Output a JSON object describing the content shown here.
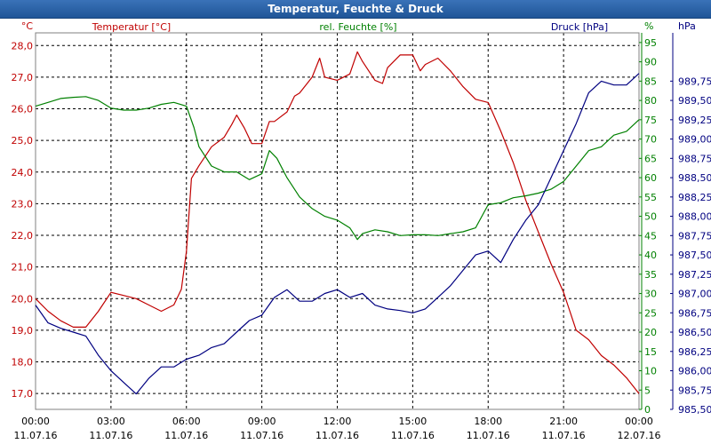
{
  "window": {
    "title": "Temperatur, Feuchte & Druck"
  },
  "chart_data": {
    "type": "line",
    "title": "Temperatur, Feuchte & Druck",
    "x_ticks": [
      {
        "time": "00:00",
        "date": "11.07.16"
      },
      {
        "time": "03:00",
        "date": "11.07.16"
      },
      {
        "time": "06:00",
        "date": "11.07.16"
      },
      {
        "time": "09:00",
        "date": "11.07.16"
      },
      {
        "time": "12:00",
        "date": "11.07.16"
      },
      {
        "time": "15:00",
        "date": "11.07.16"
      },
      {
        "time": "18:00",
        "date": "11.07.16"
      },
      {
        "time": "21:00",
        "date": "11.07.16"
      },
      {
        "time": "00:00",
        "date": "12.07.16"
      }
    ],
    "x_range_hours": [
      0,
      24
    ],
    "axes": {
      "temperature": {
        "unit_label": "°C",
        "range": [
          16.5,
          28.4
        ],
        "ticks": [
          "17,0",
          "18,0",
          "19,0",
          "20,0",
          "21,0",
          "22,0",
          "23,0",
          "24,0",
          "25,0",
          "26,0",
          "27,0",
          "28,0"
        ],
        "tick_values": [
          17,
          18,
          19,
          20,
          21,
          22,
          23,
          24,
          25,
          26,
          27,
          28
        ]
      },
      "humidity": {
        "unit_label": "%",
        "range": [
          0,
          97.5
        ],
        "ticks": [
          "0",
          "5",
          "10",
          "15",
          "20",
          "25",
          "30",
          "35",
          "40",
          "45",
          "50",
          "55",
          "60",
          "65",
          "70",
          "75",
          "80",
          "85",
          "90",
          "95"
        ],
        "tick_values": [
          0,
          5,
          10,
          15,
          20,
          25,
          30,
          35,
          40,
          45,
          50,
          55,
          60,
          65,
          70,
          75,
          80,
          85,
          90,
          95
        ]
      },
      "pressure": {
        "unit_label": "hPa",
        "range": [
          985.5,
          990.375
        ],
        "ticks": [
          "985,50",
          "985,75",
          "986,00",
          "986,25",
          "986,50",
          "986,75",
          "987,00",
          "987,25",
          "987,50",
          "987,75",
          "988,00",
          "988,25",
          "988,50",
          "988,75",
          "989,00",
          "989,25",
          "989,50",
          "989,75"
        ],
        "tick_values": [
          985.5,
          985.75,
          986.0,
          986.25,
          986.5,
          986.75,
          987.0,
          987.25,
          987.5,
          987.75,
          988.0,
          988.25,
          988.5,
          988.75,
          989.0,
          989.25,
          989.5,
          989.75
        ]
      }
    },
    "grid": true,
    "series": [
      {
        "name": "Temperatur [°C]",
        "axis": "temperature",
        "color": "#c00000",
        "x": [
          0,
          0.5,
          1,
          1.5,
          2,
          2.5,
          3,
          3.5,
          4,
          4.5,
          5,
          5.5,
          5.8,
          6,
          6.2,
          6.5,
          7,
          7.5,
          7.8,
          8,
          8.3,
          8.6,
          9,
          9.3,
          9.5,
          10,
          10.3,
          10.5,
          11,
          11.3,
          11.5,
          12,
          12.5,
          12.8,
          13,
          13.5,
          13.8,
          14,
          14.5,
          15,
          15.3,
          15.5,
          16,
          16.5,
          17,
          17.5,
          18,
          18.5,
          19,
          19.5,
          20,
          20.5,
          21,
          21.5,
          22,
          22.5,
          23,
          23.5,
          24
        ],
        "values": [
          20.0,
          19.6,
          19.3,
          19.1,
          19.1,
          19.6,
          20.2,
          20.1,
          20.0,
          19.8,
          19.6,
          19.8,
          20.3,
          21.5,
          23.8,
          24.2,
          24.8,
          25.1,
          25.5,
          25.8,
          25.4,
          24.9,
          24.9,
          25.6,
          25.6,
          25.9,
          26.4,
          26.5,
          27.0,
          27.6,
          27.0,
          26.9,
          27.1,
          27.8,
          27.5,
          26.9,
          26.8,
          27.3,
          27.7,
          27.7,
          27.2,
          27.4,
          27.6,
          27.2,
          26.7,
          26.3,
          26.2,
          25.3,
          24.3,
          23.1,
          22.1,
          21.1,
          20.2,
          19.0,
          18.7,
          18.2,
          17.9,
          17.5,
          17.0
        ]
      },
      {
        "name": "rel. Feuchte [%]",
        "axis": "humidity",
        "color": "#008000",
        "x": [
          0,
          0.5,
          1,
          1.5,
          2,
          2.5,
          3,
          3.5,
          4,
          4.5,
          5,
          5.5,
          6,
          6.3,
          6.5,
          7,
          7.5,
          8,
          8.5,
          9,
          9.3,
          9.6,
          10,
          10.5,
          11,
          11.5,
          12,
          12.5,
          12.8,
          13,
          13.5,
          14,
          14.5,
          15,
          15.5,
          16,
          16.5,
          17,
          17.5,
          18,
          18.5,
          19,
          19.5,
          20,
          20.5,
          21,
          21.5,
          22,
          22.5,
          23,
          23.5,
          24
        ],
        "values": [
          78.5,
          79.5,
          80.5,
          80.8,
          81,
          80,
          78,
          77.5,
          77.5,
          78,
          79,
          79.5,
          78.5,
          73,
          68,
          63,
          61.5,
          61.5,
          59.5,
          61,
          67,
          65,
          60,
          55,
          52,
          50,
          49,
          47,
          44,
          45.5,
          46.5,
          46,
          45,
          45.2,
          45.2,
          45,
          45.5,
          46,
          47,
          53,
          53.5,
          54.8,
          55.3,
          56,
          57,
          59,
          63,
          67,
          68,
          71,
          72,
          75
        ]
      },
      {
        "name": "Druck [hPa]",
        "axis": "pressure",
        "color": "#000080",
        "x": [
          0,
          0.5,
          1,
          1.5,
          2,
          2.5,
          3,
          3.5,
          4,
          4.5,
          5,
          5.5,
          6,
          6.5,
          7,
          7.5,
          8,
          8.5,
          9,
          9.5,
          10,
          10.5,
          11,
          11.5,
          12,
          12.5,
          13,
          13.5,
          14,
          14.5,
          15,
          15.5,
          16,
          16.5,
          17,
          17.5,
          18,
          18.5,
          19,
          19.5,
          20,
          20.5,
          21,
          21.5,
          22,
          22.5,
          23,
          23.5,
          24
        ],
        "values": [
          986.85,
          986.62,
          986.55,
          986.5,
          986.45,
          986.2,
          986.0,
          985.85,
          985.7,
          985.9,
          986.05,
          986.05,
          986.15,
          986.2,
          986.3,
          986.35,
          986.5,
          986.65,
          986.72,
          986.95,
          987.05,
          986.9,
          986.9,
          987.0,
          987.05,
          986.95,
          987.0,
          986.85,
          986.8,
          986.78,
          986.75,
          986.8,
          986.95,
          987.1,
          987.3,
          987.5,
          987.55,
          987.4,
          987.7,
          987.95,
          988.15,
          988.5,
          988.85,
          989.2,
          989.6,
          989.75,
          989.7,
          989.7,
          989.85
        ]
      }
    ]
  }
}
